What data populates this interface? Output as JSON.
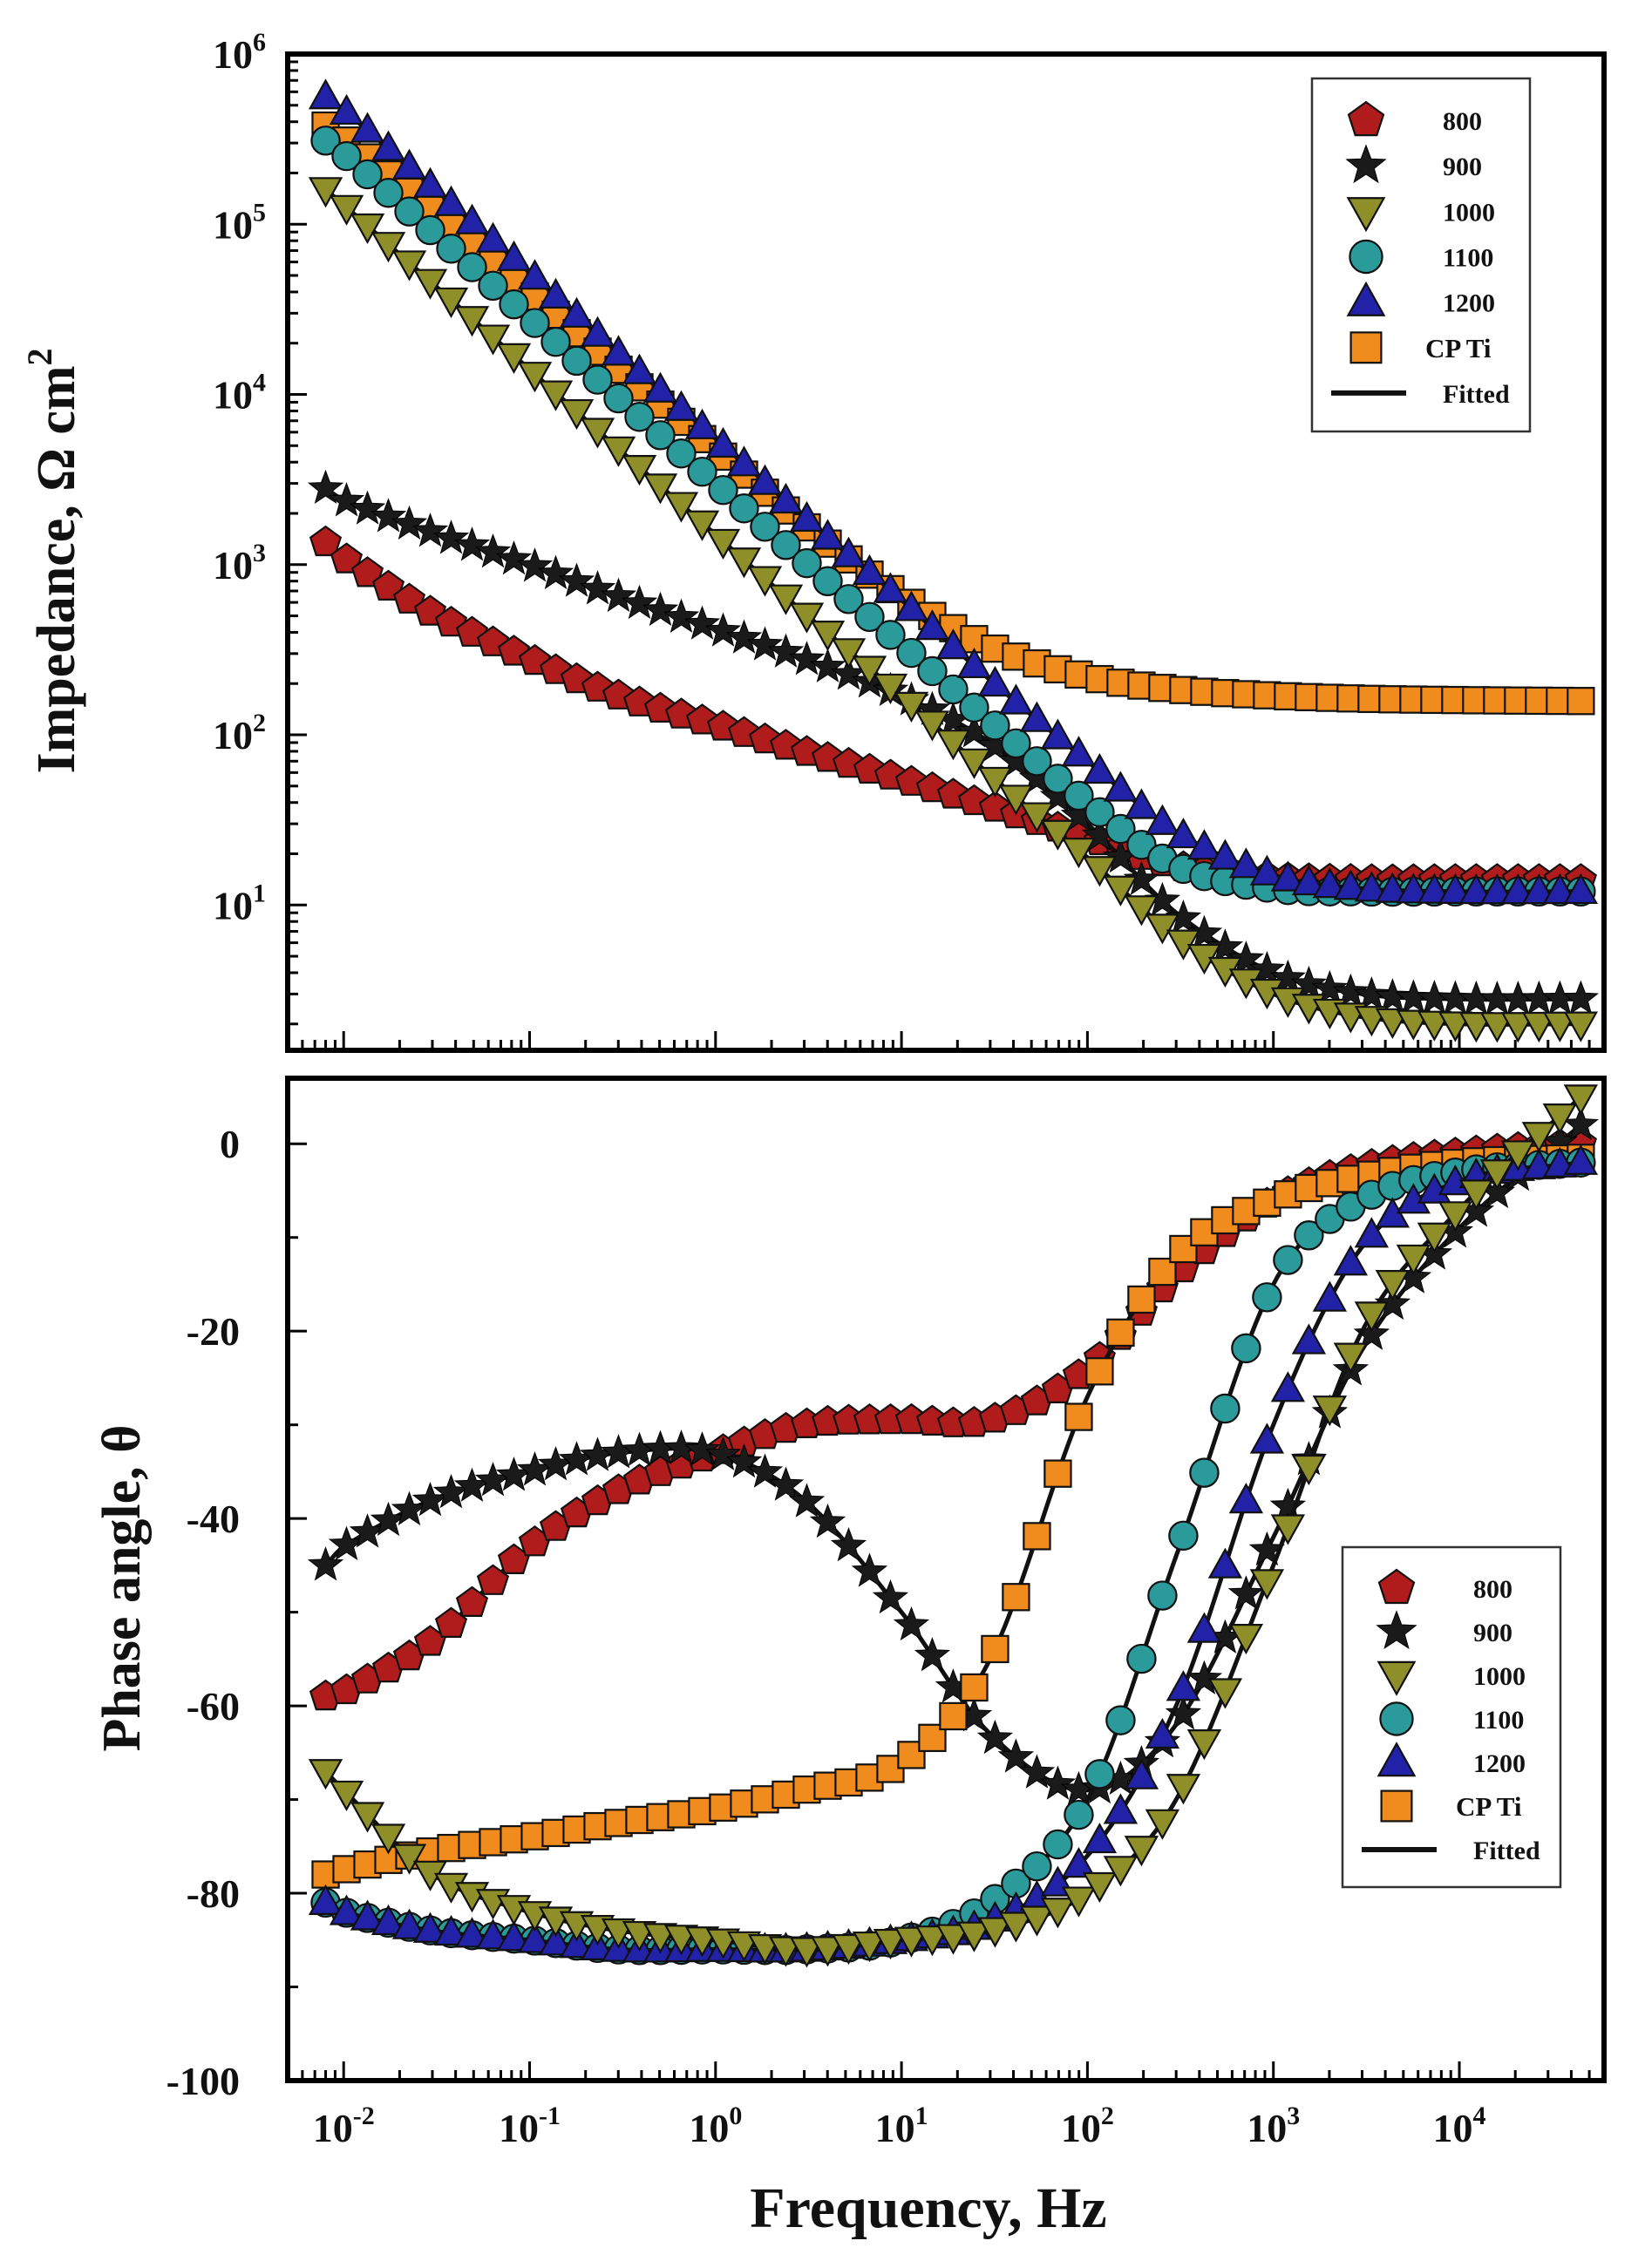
{
  "chart_data": [
    {
      "type": "line",
      "panel": "top",
      "xscale": "log",
      "yscale": "log",
      "xlim": [
        0.005,
        60000
      ],
      "ylim": [
        1.4,
        1000000
      ],
      "xlabel": "",
      "ylabel": "Impedance, Ω cm²",
      "ylabel_parts": [
        "Impedance, Ω cm",
        "2"
      ],
      "yticks": [
        {
          "value": 10,
          "base": "10",
          "exp": "1"
        },
        {
          "value": 100,
          "base": "10",
          "exp": "2"
        },
        {
          "value": 1000,
          "base": "10",
          "exp": "3"
        },
        {
          "value": 10000,
          "base": "10",
          "exp": "4"
        },
        {
          "value": 100000,
          "base": "10",
          "exp": "5"
        },
        {
          "value": 1000000,
          "base": "10",
          "exp": "6"
        }
      ],
      "legend": {
        "position": "top-right",
        "entries": [
          "800",
          "900",
          "1000",
          "1100",
          "1200",
          "CP Ti",
          "Fitted"
        ]
      },
      "series": [
        {
          "name": "800",
          "marker": "pentagon",
          "color": "#b01c1c",
          "x": [
            0.008,
            0.01,
            0.03,
            0.1,
            0.3,
            1,
            3,
            10,
            30,
            100,
            300,
            1000,
            3000,
            10000,
            45000
          ],
          "y": [
            1350,
            1100,
            520,
            280,
            170,
            115,
            80,
            55,
            38,
            25,
            17,
            14.5,
            14,
            14,
            14
          ]
        },
        {
          "name": "900",
          "marker": "star",
          "color": "#1a1a1a",
          "x": [
            0.008,
            0.01,
            0.03,
            0.1,
            0.3,
            1,
            3,
            10,
            30,
            100,
            300,
            1000,
            3000,
            10000,
            45000
          ],
          "y": [
            2800,
            2400,
            1550,
            1000,
            650,
            420,
            280,
            170,
            90,
            30,
            9,
            4,
            3,
            2.8,
            2.8
          ]
        },
        {
          "name": "1000",
          "marker": "triangle-down",
          "color": "#8f8f2a",
          "x": [
            0.008,
            0.01,
            0.03,
            0.1,
            0.3,
            1,
            3,
            10,
            30,
            100,
            300,
            1000,
            3000,
            10000,
            45000
          ],
          "y": [
            160000,
            130000,
            45000,
            14000,
            4800,
            1500,
            520,
            170,
            58,
            19,
            6.5,
            3,
            2.2,
            2,
            2
          ]
        },
        {
          "name": "1100",
          "marker": "circle",
          "color": "#2a9a9a",
          "x": [
            0.008,
            0.01,
            0.03,
            0.1,
            0.3,
            1,
            3,
            10,
            30,
            100,
            300,
            1000,
            3000,
            10000,
            45000
          ],
          "y": [
            310000,
            260000,
            90000,
            28000,
            9500,
            3000,
            1050,
            340,
            120,
            40,
            17,
            12.5,
            12,
            12,
            12
          ]
        },
        {
          "name": "1200",
          "marker": "triangle-up",
          "color": "#2222a8",
          "x": [
            0.008,
            0.01,
            0.03,
            0.1,
            0.3,
            1,
            3,
            10,
            30,
            100,
            300,
            1000,
            3000,
            10000,
            45000
          ],
          "y": [
            560000,
            470000,
            165000,
            52000,
            17500,
            5500,
            1900,
            620,
            210,
            70,
            27,
            15,
            12.5,
            12,
            12
          ]
        },
        {
          "name": "CP Ti",
          "marker": "square",
          "color": "#f08c1e",
          "x": [
            0.008,
            0.01,
            0.03,
            0.1,
            0.3,
            1,
            3,
            10,
            30,
            100,
            300,
            1000,
            3000,
            10000,
            45000
          ],
          "y": [
            380000,
            320000,
            120000,
            40000,
            14000,
            4700,
            1700,
            650,
            330,
            220,
            185,
            170,
            163,
            160,
            158
          ]
        }
      ]
    },
    {
      "type": "line",
      "panel": "bottom",
      "xscale": "log",
      "yscale": "linear",
      "xlim": [
        0.005,
        60000
      ],
      "ylim": [
        -100,
        7
      ],
      "xlabel": "Frequency, Hz",
      "ylabel": "Phase angle, θ",
      "yticks": [
        {
          "value": 0,
          "label": "0"
        },
        {
          "value": -20,
          "label": "-20"
        },
        {
          "value": -40,
          "label": "-40"
        },
        {
          "value": -60,
          "label": "-60"
        },
        {
          "value": -80,
          "label": "-80"
        },
        {
          "value": -100,
          "label": "-100"
        }
      ],
      "xticks": [
        {
          "value": 0.01,
          "base": "10",
          "exp": "-2"
        },
        {
          "value": 0.1,
          "base": "10",
          "exp": "-1"
        },
        {
          "value": 1,
          "base": "10",
          "exp": "0"
        },
        {
          "value": 10,
          "base": "10",
          "exp": "1"
        },
        {
          "value": 100,
          "base": "10",
          "exp": "2"
        },
        {
          "value": 1000,
          "base": "10",
          "exp": "3"
        },
        {
          "value": 10000,
          "base": "10",
          "exp": "4"
        }
      ],
      "legend": {
        "position": "center-right",
        "entries": [
          "800",
          "900",
          "1000",
          "1100",
          "1200",
          "CP Ti",
          "Fitted"
        ]
      },
      "series": [
        {
          "name": "800",
          "marker": "pentagon",
          "color": "#b01c1c",
          "x": [
            0.008,
            0.01,
            0.03,
            0.1,
            0.3,
            1,
            3,
            10,
            30,
            100,
            300,
            1000,
            3000,
            10000,
            45000
          ],
          "y": [
            -59,
            -58.5,
            -53,
            -43,
            -37,
            -33,
            -30,
            -29.5,
            -29.5,
            -24,
            -14,
            -6,
            -2.5,
            -1,
            0
          ]
        },
        {
          "name": "900",
          "marker": "star",
          "color": "#1a1a1a",
          "x": [
            0.008,
            0.01,
            0.03,
            0.1,
            0.3,
            1,
            3,
            10,
            30,
            100,
            300,
            1000,
            3000,
            10000,
            45000
          ],
          "y": [
            -45,
            -43,
            -38,
            -35,
            -33,
            -33,
            -38,
            -50,
            -63,
            -69,
            -62,
            -42,
            -22,
            -9,
            2
          ]
        },
        {
          "name": "1000",
          "marker": "triangle-down",
          "color": "#8f8f2a",
          "x": [
            0.008,
            0.01,
            0.03,
            0.1,
            0.3,
            1,
            3,
            10,
            30,
            100,
            300,
            1000,
            3000,
            10000,
            45000
          ],
          "y": [
            -67,
            -69,
            -78,
            -82,
            -84,
            -85,
            -86,
            -85,
            -84,
            -80,
            -70,
            -45,
            -20,
            -7,
            5
          ]
        },
        {
          "name": "1100",
          "marker": "circle",
          "color": "#2a9a9a",
          "x": [
            0.008,
            0.01,
            0.03,
            0.1,
            0.3,
            1,
            3,
            10,
            30,
            100,
            300,
            1000,
            3000,
            10000,
            45000
          ],
          "y": [
            -81,
            -82,
            -84,
            -85,
            -86,
            -86,
            -86,
            -85,
            -81,
            -70,
            -44,
            -15,
            -6,
            -3,
            -2
          ]
        },
        {
          "name": "1200",
          "marker": "triangle-up",
          "color": "#2222a8",
          "x": [
            0.008,
            0.01,
            0.03,
            0.1,
            0.3,
            1,
            3,
            10,
            30,
            100,
            300,
            1000,
            3000,
            10000,
            45000
          ],
          "y": [
            -81,
            -82,
            -84,
            -85,
            -86,
            -86,
            -86,
            -85,
            -83,
            -76,
            -60,
            -30,
            -11,
            -4,
            -2
          ]
        },
        {
          "name": "CP Ti",
          "marker": "square",
          "color": "#f08c1e",
          "x": [
            0.008,
            0.01,
            0.03,
            0.1,
            0.3,
            1,
            3,
            10,
            30,
            100,
            300,
            1000,
            3000,
            10000,
            45000
          ],
          "y": [
            -78,
            -77.5,
            -75.5,
            -74,
            -72.5,
            -71,
            -69,
            -66,
            -55,
            -27,
            -12,
            -6,
            -3.5,
            -2,
            -1.5
          ]
        }
      ]
    }
  ]
}
